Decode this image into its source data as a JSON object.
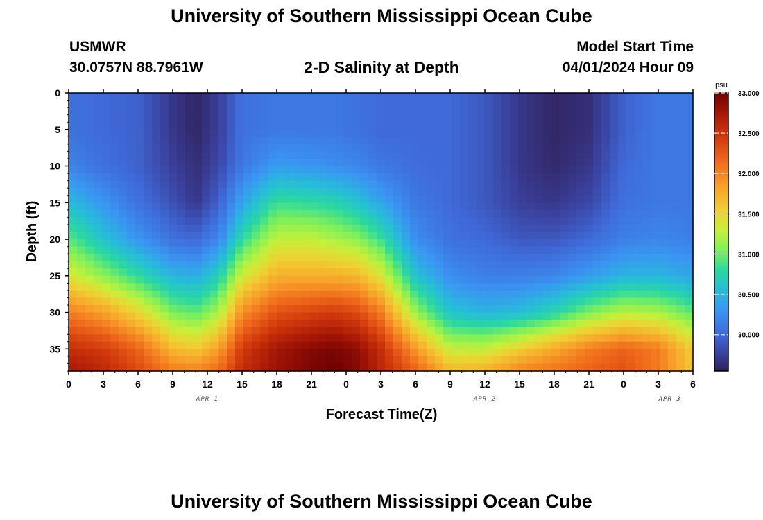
{
  "header": {
    "title": "University of Southern Mississippi Ocean Cube",
    "station": "USMWR",
    "coords": "30.0757N  88.7961W",
    "subtitle": "2-D Salinity at Depth",
    "model_label": "Model Start Time",
    "model_time": "04/01/2024 Hour 09",
    "footer_title": "University of Southern Mississippi Ocean Cube"
  },
  "chart_data": {
    "type": "heatmap",
    "title": "2-D Salinity at Depth",
    "xlabel": "Forecast Time(Z)",
    "ylabel": "Depth (ft)",
    "x_range_hours": [
      0,
      54
    ],
    "ylim": [
      0,
      38
    ],
    "x_ticks": [
      {
        "hour": 0,
        "label": "0"
      },
      {
        "hour": 3,
        "label": "3"
      },
      {
        "hour": 6,
        "label": "6"
      },
      {
        "hour": 9,
        "label": "9"
      },
      {
        "hour": 12,
        "label": "12"
      },
      {
        "hour": 15,
        "label": "15"
      },
      {
        "hour": 18,
        "label": "18"
      },
      {
        "hour": 21,
        "label": "21"
      },
      {
        "hour": 24,
        "label": "0"
      },
      {
        "hour": 27,
        "label": "3"
      },
      {
        "hour": 30,
        "label": "6"
      },
      {
        "hour": 33,
        "label": "9"
      },
      {
        "hour": 36,
        "label": "12"
      },
      {
        "hour": 39,
        "label": "15"
      },
      {
        "hour": 42,
        "label": "18"
      },
      {
        "hour": 45,
        "label": "21"
      },
      {
        "hour": 48,
        "label": "0"
      },
      {
        "hour": 51,
        "label": "3"
      },
      {
        "hour": 54,
        "label": "6"
      }
    ],
    "date_labels": [
      {
        "hour": 12,
        "label": "APR 1"
      },
      {
        "hour": 36,
        "label": "APR 2"
      },
      {
        "hour": 52,
        "label": "APR 3"
      }
    ],
    "y_ticks": [
      0,
      5,
      10,
      15,
      20,
      25,
      30,
      35
    ],
    "colorbar": {
      "unit": "psu",
      "min": 29.55,
      "max": 33.0,
      "ticks": [
        "33.000",
        "32.500",
        "32.000",
        "31.500",
        "31.000",
        "30.500",
        "30.000"
      ],
      "tick_values": [
        33.0,
        32.5,
        32.0,
        31.5,
        31.0,
        30.5,
        30.0
      ]
    },
    "colormap": [
      {
        "v": 29.55,
        "c": "#2f1f55"
      },
      {
        "v": 29.75,
        "c": "#3a3f9a"
      },
      {
        "v": 30.0,
        "c": "#3f6ad8"
      },
      {
        "v": 30.3,
        "c": "#3a95f2"
      },
      {
        "v": 30.55,
        "c": "#26bdd9"
      },
      {
        "v": 30.8,
        "c": "#2ad8a0"
      },
      {
        "v": 31.05,
        "c": "#7ef05a"
      },
      {
        "v": 31.3,
        "c": "#c6f03a"
      },
      {
        "v": 31.55,
        "c": "#f0cf32"
      },
      {
        "v": 31.85,
        "c": "#f8a02a"
      },
      {
        "v": 32.15,
        "c": "#ef6a1c"
      },
      {
        "v": 32.45,
        "c": "#d23a0c"
      },
      {
        "v": 32.75,
        "c": "#a51606"
      },
      {
        "v": 33.0,
        "c": "#6e0202"
      }
    ],
    "profiles": {
      "hours": [
        0,
        3,
        6,
        9,
        11,
        13,
        15,
        18,
        21,
        23,
        25,
        27,
        30,
        33,
        36,
        39,
        42,
        45,
        48,
        51,
        54
      ],
      "depths": [
        0,
        5,
        10,
        15,
        20,
        25,
        30,
        35,
        38
      ],
      "salinity": [
        [
          30.05,
          30.05,
          30.18,
          30.55,
          30.95,
          31.4,
          32.05,
          32.55,
          32.75
        ],
        [
          30.0,
          30.0,
          30.05,
          30.3,
          30.6,
          31.1,
          31.85,
          32.45,
          32.6
        ],
        [
          29.95,
          29.95,
          29.95,
          30.05,
          30.3,
          30.8,
          31.5,
          32.2,
          32.35
        ],
        [
          29.7,
          29.7,
          29.75,
          29.85,
          30.05,
          30.5,
          31.05,
          31.7,
          32.05
        ],
        [
          29.6,
          29.6,
          29.65,
          29.7,
          30.0,
          30.45,
          30.95,
          31.6,
          32.0
        ],
        [
          29.75,
          29.75,
          29.8,
          29.95,
          30.2,
          30.7,
          31.2,
          31.85,
          32.15
        ],
        [
          30.05,
          30.05,
          30.1,
          30.4,
          30.8,
          31.35,
          31.95,
          32.45,
          32.55
        ],
        [
          30.1,
          30.1,
          30.35,
          30.85,
          31.3,
          31.75,
          32.3,
          32.75,
          32.8
        ],
        [
          30.1,
          30.1,
          30.3,
          30.8,
          31.3,
          31.75,
          32.4,
          32.9,
          32.95
        ],
        [
          30.1,
          30.1,
          30.25,
          30.75,
          31.2,
          31.75,
          32.45,
          32.95,
          33.0
        ],
        [
          30.05,
          30.05,
          30.2,
          30.6,
          31.1,
          31.7,
          32.35,
          32.85,
          32.9
        ],
        [
          30.0,
          30.0,
          30.1,
          30.4,
          30.85,
          31.4,
          32.05,
          32.55,
          32.6
        ],
        [
          30.0,
          30.0,
          30.02,
          30.1,
          30.25,
          30.6,
          31.15,
          31.9,
          32.2
        ],
        [
          30.0,
          30.0,
          30.0,
          30.0,
          30.05,
          30.25,
          30.6,
          31.3,
          31.7
        ],
        [
          29.9,
          29.9,
          29.9,
          29.9,
          30.0,
          30.15,
          30.5,
          31.3,
          31.75
        ],
        [
          29.7,
          29.7,
          29.7,
          29.75,
          29.9,
          30.15,
          30.55,
          31.55,
          32.0
        ],
        [
          29.6,
          29.6,
          29.62,
          29.7,
          29.9,
          30.2,
          30.75,
          31.8,
          32.1
        ],
        [
          29.65,
          29.65,
          29.7,
          29.8,
          30.0,
          30.35,
          31.05,
          32.05,
          32.2
        ],
        [
          29.95,
          29.95,
          30.0,
          30.05,
          30.15,
          30.5,
          31.25,
          32.2,
          32.3
        ],
        [
          30.1,
          30.1,
          30.1,
          30.1,
          30.2,
          30.5,
          31.2,
          32.05,
          32.05
        ],
        [
          30.1,
          30.1,
          30.1,
          30.1,
          30.15,
          30.4,
          30.95,
          31.55,
          31.6
        ]
      ]
    }
  }
}
